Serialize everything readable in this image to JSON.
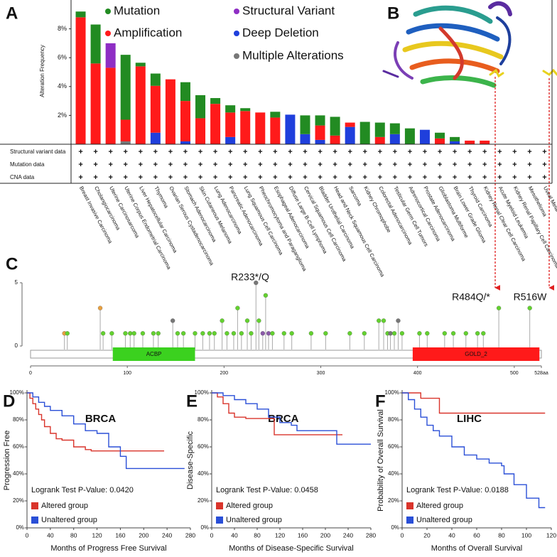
{
  "structure": {
    "panel": "B"
  },
  "chart_data": [
    {
      "panel": "A",
      "type": "bar",
      "stacked": true,
      "y_label": "Alteration Frequency",
      "categories": [
        "Breast Invasive Carcinoma",
        "Cholangiocarcinoma",
        "Uterine Carcinosarcoma",
        "Uterine Corpus Endometrial Carcinoma",
        "Liver Hepatocellular Carcinoma",
        "Thymoma",
        "Ovarian Serous Cystadenocarcinoma",
        "Stomach Adenocarcinoma",
        "Skin Cutaneous Melanoma",
        "Lung Adenocarcinoma",
        "Pancreatic Adenocarcinoma",
        "Lung Squamous Cell Carcinoma",
        "Pheochromocytoma and Paraganglioma",
        "Esophageal Adenocarcinoma",
        "Diffuse Large B-Cell Lymphoma",
        "Cervical Squamous Cell Carcinoma",
        "Bladder Urothelial Carcinoma",
        "Head and Neck Squamous Cell Carcinoma",
        "Sarcoma",
        "Kidney Chromophobe",
        "Colorectal Adenocarcinoma",
        "Testicular Germ Cell Tumors",
        "Adrenocortical Carcinoma",
        "Prostate Adenocarcinoma",
        "Glioblastoma Multiforme",
        "Brain Lower Grade Glioma",
        "Thyroid Carcinoma",
        "Kidney Renal Clear Cell Carcinoma",
        "Acute Myeloid Leukemia",
        "Kidney Renal Papillary Cell Carcinoma",
        "Mesothelioma",
        "Uveal Melanoma"
      ],
      "series": [
        {
          "name": "Multiple Alterations",
          "color": "#777777",
          "values": [
            0,
            0,
            0,
            0.2,
            0,
            0,
            0,
            0,
            0,
            0,
            0,
            0,
            0,
            0,
            0,
            0,
            0,
            0,
            0,
            0,
            0,
            0,
            0,
            0,
            0,
            0,
            0,
            0,
            0,
            0,
            0,
            0
          ]
        },
        {
          "name": "Deep Deletion",
          "color": "#1f3fdc",
          "values": [
            0,
            0,
            0,
            0,
            0,
            0.8,
            0,
            0.2,
            0,
            0,
            0.5,
            0,
            0,
            0,
            2.05,
            0.7,
            0.3,
            0,
            1.2,
            0,
            0,
            0.7,
            0,
            1.0,
            0,
            0.2,
            0,
            0,
            0,
            0,
            0,
            0
          ]
        },
        {
          "name": "Amplification",
          "color": "#ff1a1a",
          "values": [
            8.8,
            5.6,
            5.3,
            1.5,
            5.4,
            3.25,
            4.5,
            2.8,
            1.8,
            2.8,
            1.7,
            2.3,
            2.2,
            1.85,
            0,
            0,
            1.0,
            0.6,
            0.3,
            0,
            0.5,
            0,
            0,
            0,
            0.4,
            0,
            0.25,
            0.25,
            0,
            0,
            0,
            0
          ]
        },
        {
          "name": "Structural Variant",
          "color": "#8e2ec4",
          "values": [
            0,
            0,
            1.7,
            0,
            0,
            0,
            0,
            0,
            0,
            0,
            0,
            0,
            0,
            0,
            0,
            0,
            0,
            0,
            0,
            0,
            0,
            0,
            0,
            0,
            0,
            0,
            0,
            0,
            0,
            0,
            0,
            0
          ]
        },
        {
          "name": "Mutation",
          "color": "#228b22",
          "values": [
            0.4,
            2.7,
            0,
            4.5,
            0.25,
            0.85,
            0,
            1.3,
            1.6,
            0.4,
            0.5,
            0.2,
            0,
            0.4,
            0,
            1.3,
            0.7,
            1.3,
            0,
            1.55,
            1.0,
            0.75,
            1.1,
            0,
            0.4,
            0.3,
            0,
            0,
            0,
            0,
            0,
            0
          ]
        }
      ],
      "ylim": [
        0,
        10
      ],
      "yticks": [
        {
          "value": 2,
          "label": "2%"
        },
        {
          "value": 4,
          "label": "4%"
        },
        {
          "value": 6,
          "label": "6%"
        },
        {
          "value": 8,
          "label": "8%"
        }
      ],
      "profile_rows": [
        "Structural variant data",
        "Mutation data",
        "CNA data"
      ],
      "profile_mark": "+"
    },
    {
      "panel": "C",
      "type": "lollipop",
      "x": [
        35,
        38,
        72,
        75,
        84,
        98,
        103,
        107,
        116,
        127,
        132,
        147,
        152,
        158,
        170,
        178,
        185,
        190,
        198,
        203,
        210,
        214,
        218,
        224,
        228,
        233,
        236,
        240,
        243,
        246,
        250,
        262,
        270,
        290,
        305,
        330,
        345,
        360,
        365,
        369,
        372,
        376,
        380,
        384,
        402,
        410,
        428,
        437,
        450,
        462,
        468,
        484,
        516
      ],
      "values": [
        1,
        1,
        3,
        1,
        1,
        1,
        1,
        1,
        1,
        1,
        1,
        2,
        1,
        1,
        1,
        1,
        1,
        1,
        2,
        1,
        1,
        3,
        1,
        2,
        1,
        5,
        2,
        1,
        4,
        1,
        1,
        1,
        1,
        1,
        1,
        1,
        1,
        2,
        2,
        1,
        1,
        1,
        2,
        1,
        1,
        1,
        1,
        1,
        1,
        1,
        1,
        3,
        3
      ],
      "colors": [
        "#e8a040",
        "#63d12f",
        "#e8a040",
        "#63d12f",
        "#63d12f",
        "#63d12f",
        "#63d12f",
        "#63d12f",
        "#63d12f",
        "#63d12f",
        "#63d12f",
        "#777777",
        "#63d12f",
        "#63d12f",
        "#63d12f",
        "#63d12f",
        "#63d12f",
        "#63d12f",
        "#63d12f",
        "#63d12f",
        "#63d12f",
        "#63d12f",
        "#63d12f",
        "#63d12f",
        "#63d12f",
        "#777777",
        "#63d12f",
        "#8a5aa8",
        "#63d12f",
        "#8a5aa8",
        "#63d12f",
        "#63d12f",
        "#63d12f",
        "#63d12f",
        "#63d12f",
        "#63d12f",
        "#63d12f",
        "#63d12f",
        "#63d12f",
        "#63d12f",
        "#777777",
        "#63d12f",
        "#777777",
        "#63d12f",
        "#63d12f",
        "#63d12f",
        "#63d12f",
        "#63d12f",
        "#63d12f",
        "#63d12f",
        "#63d12f",
        "#63d12f",
        "#63d12f"
      ],
      "domains": [
        {
          "name": "ACBP",
          "start": 85,
          "end": 170,
          "color": "#3bd11f"
        },
        {
          "name": "GOLD_2",
          "start": 395,
          "end": 526,
          "color": "#ff1a1a"
        }
      ],
      "xlim": [
        0,
        528
      ],
      "xticks": [
        0,
        100,
        200,
        300,
        400,
        500,
        {
          "value": 528,
          "label": "528aa"
        }
      ],
      "ylim": [
        0,
        5
      ],
      "yticks": [
        0,
        5
      ],
      "annotations": [
        "R233*/Q",
        "R484Q/*",
        "R516W"
      ]
    },
    {
      "panel": "D",
      "type": "line",
      "drawstyle": "steps-post",
      "title": "BRCA",
      "title_color": "#ff2a2a",
      "x_label": "Months of Progress Free Survival",
      "y_label": "Progression Free",
      "annotation": "Logrank Test P-Value: 0.0420",
      "series": [
        {
          "name": "Altered group",
          "color": "#d9342b",
          "x": [
            0,
            5,
            10,
            15,
            20,
            25,
            30,
            40,
            50,
            60,
            70,
            80,
            100,
            110,
            140,
            235
          ],
          "values": [
            100,
            96,
            92,
            88,
            84,
            80,
            75,
            70,
            66,
            65,
            65,
            60,
            58,
            57,
            57,
            57
          ]
        },
        {
          "name": "Unaltered group",
          "color": "#2a4fd7",
          "x": [
            0,
            10,
            20,
            30,
            40,
            60,
            80,
            100,
            120,
            130,
            140,
            160,
            170,
            180,
            270
          ],
          "values": [
            100,
            97,
            93,
            90,
            87,
            83,
            77,
            72,
            70,
            70,
            60,
            53,
            44,
            44,
            44
          ]
        }
      ],
      "xlim": [
        0,
        280
      ],
      "xticks": [
        0,
        40,
        80,
        120,
        160,
        200,
        240,
        280
      ],
      "ylim": [
        0,
        100
      ],
      "yticks": [
        {
          "value": 0,
          "label": "0%"
        },
        {
          "value": 20,
          "label": "20%"
        },
        {
          "value": 40,
          "label": "40%"
        },
        {
          "value": 60,
          "label": "60%"
        },
        {
          "value": 80,
          "label": "80%"
        },
        {
          "value": 100,
          "label": "100%"
        }
      ]
    },
    {
      "panel": "E",
      "type": "line",
      "drawstyle": "steps-post",
      "title": "BRCA",
      "title_color": "#ff2a2a",
      "x_label": "Months of Disease-Specific Survival",
      "y_label": "Disease-Specific",
      "annotation": "Logrank Test P-Value: 0.0458",
      "series": [
        {
          "name": "Altered group",
          "color": "#d9342b",
          "x": [
            0,
            10,
            20,
            30,
            40,
            60,
            80,
            100,
            110,
            220,
            230
          ],
          "values": [
            100,
            97,
            92,
            85,
            82,
            81,
            81,
            81,
            69,
            69,
            69
          ]
        },
        {
          "name": "Unaltered group",
          "color": "#2a4fd7",
          "x": [
            0,
            20,
            40,
            60,
            80,
            100,
            120,
            140,
            150,
            220,
            280
          ],
          "values": [
            100,
            98,
            95,
            92,
            88,
            82,
            78,
            76,
            72,
            62,
            62
          ]
        }
      ],
      "xlim": [
        0,
        280
      ],
      "xticks": [
        0,
        40,
        80,
        120,
        160,
        200,
        240,
        280
      ],
      "ylim": [
        0,
        100
      ],
      "yticks": [
        {
          "value": 0,
          "label": "0%"
        },
        {
          "value": 20,
          "label": "20%"
        },
        {
          "value": 40,
          "label": "40%"
        },
        {
          "value": 60,
          "label": "60%"
        },
        {
          "value": 80,
          "label": "80%"
        },
        {
          "value": 100,
          "label": "100%"
        }
      ]
    },
    {
      "panel": "F",
      "type": "line",
      "drawstyle": "steps-post",
      "title": "LIHC",
      "title_color": "#ff2a2a",
      "x_label": "Months of Overall Survival",
      "y_label": "Probability of Overall Survival",
      "annotation": "Logrank Test P-Value: 0.0188",
      "series": [
        {
          "name": "Altered group",
          "color": "#d9342b",
          "x": [
            0,
            10,
            15,
            25,
            30,
            40,
            115
          ],
          "values": [
            100,
            100,
            96,
            96,
            85,
            85,
            85
          ]
        },
        {
          "name": "Unaltered group",
          "color": "#2a4fd7",
          "x": [
            0,
            5,
            10,
            15,
            20,
            25,
            30,
            40,
            50,
            60,
            70,
            80,
            82,
            90,
            100,
            110,
            115
          ],
          "values": [
            100,
            95,
            88,
            82,
            76,
            72,
            68,
            60,
            54,
            51,
            48,
            46,
            40,
            32,
            22,
            15,
            15
          ]
        }
      ],
      "xlim": [
        0,
        120
      ],
      "xticks": [
        0,
        20,
        40,
        60,
        80,
        100,
        120
      ],
      "ylim": [
        0,
        100
      ],
      "yticks": [
        {
          "value": 0,
          "label": "0%"
        },
        {
          "value": 20,
          "label": "20%"
        },
        {
          "value": 40,
          "label": "40%"
        },
        {
          "value": 60,
          "label": "60%"
        },
        {
          "value": 80,
          "label": "80%"
        },
        {
          "value": 100,
          "label": "100%"
        }
      ]
    }
  ]
}
